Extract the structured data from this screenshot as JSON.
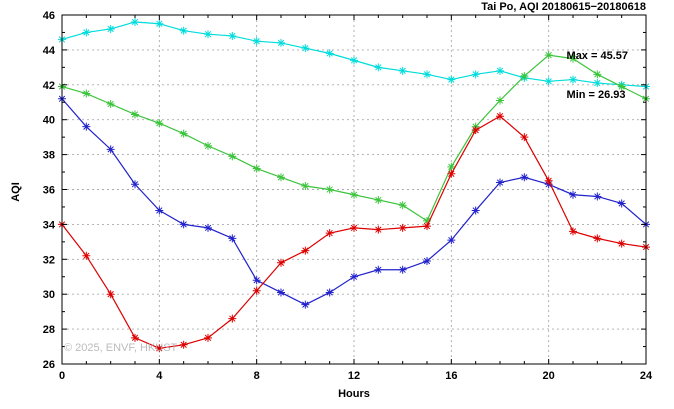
{
  "title": "Tai Po, AQI 20180615−20180618",
  "annotation": {
    "max": "Max = 45.57",
    "min": "Min = 26.93"
  },
  "watermark": "© 2025, ENVF, HKUST",
  "chart_data": {
    "type": "line",
    "title": "Tai Po, AQI 20180615−20180618",
    "xlabel": "Hours",
    "ylabel": "AQI",
    "xlim": [
      0,
      24
    ],
    "ylim": [
      26,
      46
    ],
    "x_ticks": [
      0,
      4,
      8,
      12,
      16,
      20,
      24
    ],
    "y_ticks": [
      26,
      28,
      30,
      32,
      34,
      36,
      38,
      40,
      42,
      44,
      46
    ],
    "grid": true,
    "legend": "none",
    "marker": "asterisk",
    "annotations": [
      "Max = 45.57",
      "Min = 26.93"
    ],
    "x": [
      0,
      1,
      2,
      3,
      4,
      5,
      6,
      7,
      8,
      9,
      10,
      11,
      12,
      13,
      14,
      15,
      16,
      17,
      18,
      19,
      20,
      21,
      22,
      23,
      24
    ],
    "series": [
      {
        "name": "cyan-line",
        "color": "#00dcdc",
        "values": [
          44.6,
          45.0,
          45.2,
          45.6,
          45.5,
          45.1,
          44.9,
          44.8,
          44.5,
          44.4,
          44.1,
          43.8,
          43.4,
          43.0,
          42.8,
          42.6,
          42.3,
          42.6,
          42.8,
          42.4,
          42.2,
          42.3,
          42.1,
          42.0,
          41.9
        ]
      },
      {
        "name": "green-line",
        "color": "#3cc43c",
        "values": [
          41.9,
          41.5,
          40.9,
          40.3,
          39.8,
          39.2,
          38.5,
          37.9,
          37.2,
          36.7,
          36.2,
          36.0,
          35.7,
          35.4,
          35.1,
          34.2,
          37.3,
          39.6,
          41.1,
          42.5,
          43.7,
          43.5,
          42.6,
          41.9,
          41.2
        ]
      },
      {
        "name": "blue-line",
        "color": "#2222cc",
        "values": [
          41.2,
          39.6,
          38.3,
          36.3,
          34.8,
          34.0,
          33.8,
          33.2,
          30.8,
          30.1,
          29.4,
          30.1,
          31.0,
          31.4,
          31.4,
          31.9,
          33.1,
          34.8,
          36.4,
          36.7,
          36.3,
          35.7,
          35.6,
          35.2,
          34.0
        ]
      },
      {
        "name": "red-line",
        "color": "#dd0000",
        "values": [
          34.0,
          32.2,
          30.0,
          27.5,
          26.9,
          27.1,
          27.5,
          28.6,
          30.2,
          31.8,
          32.5,
          33.5,
          33.8,
          33.7,
          33.8,
          33.9,
          36.9,
          39.4,
          40.2,
          39.0,
          36.5,
          33.6,
          33.2,
          32.9,
          32.7
        ]
      }
    ]
  }
}
